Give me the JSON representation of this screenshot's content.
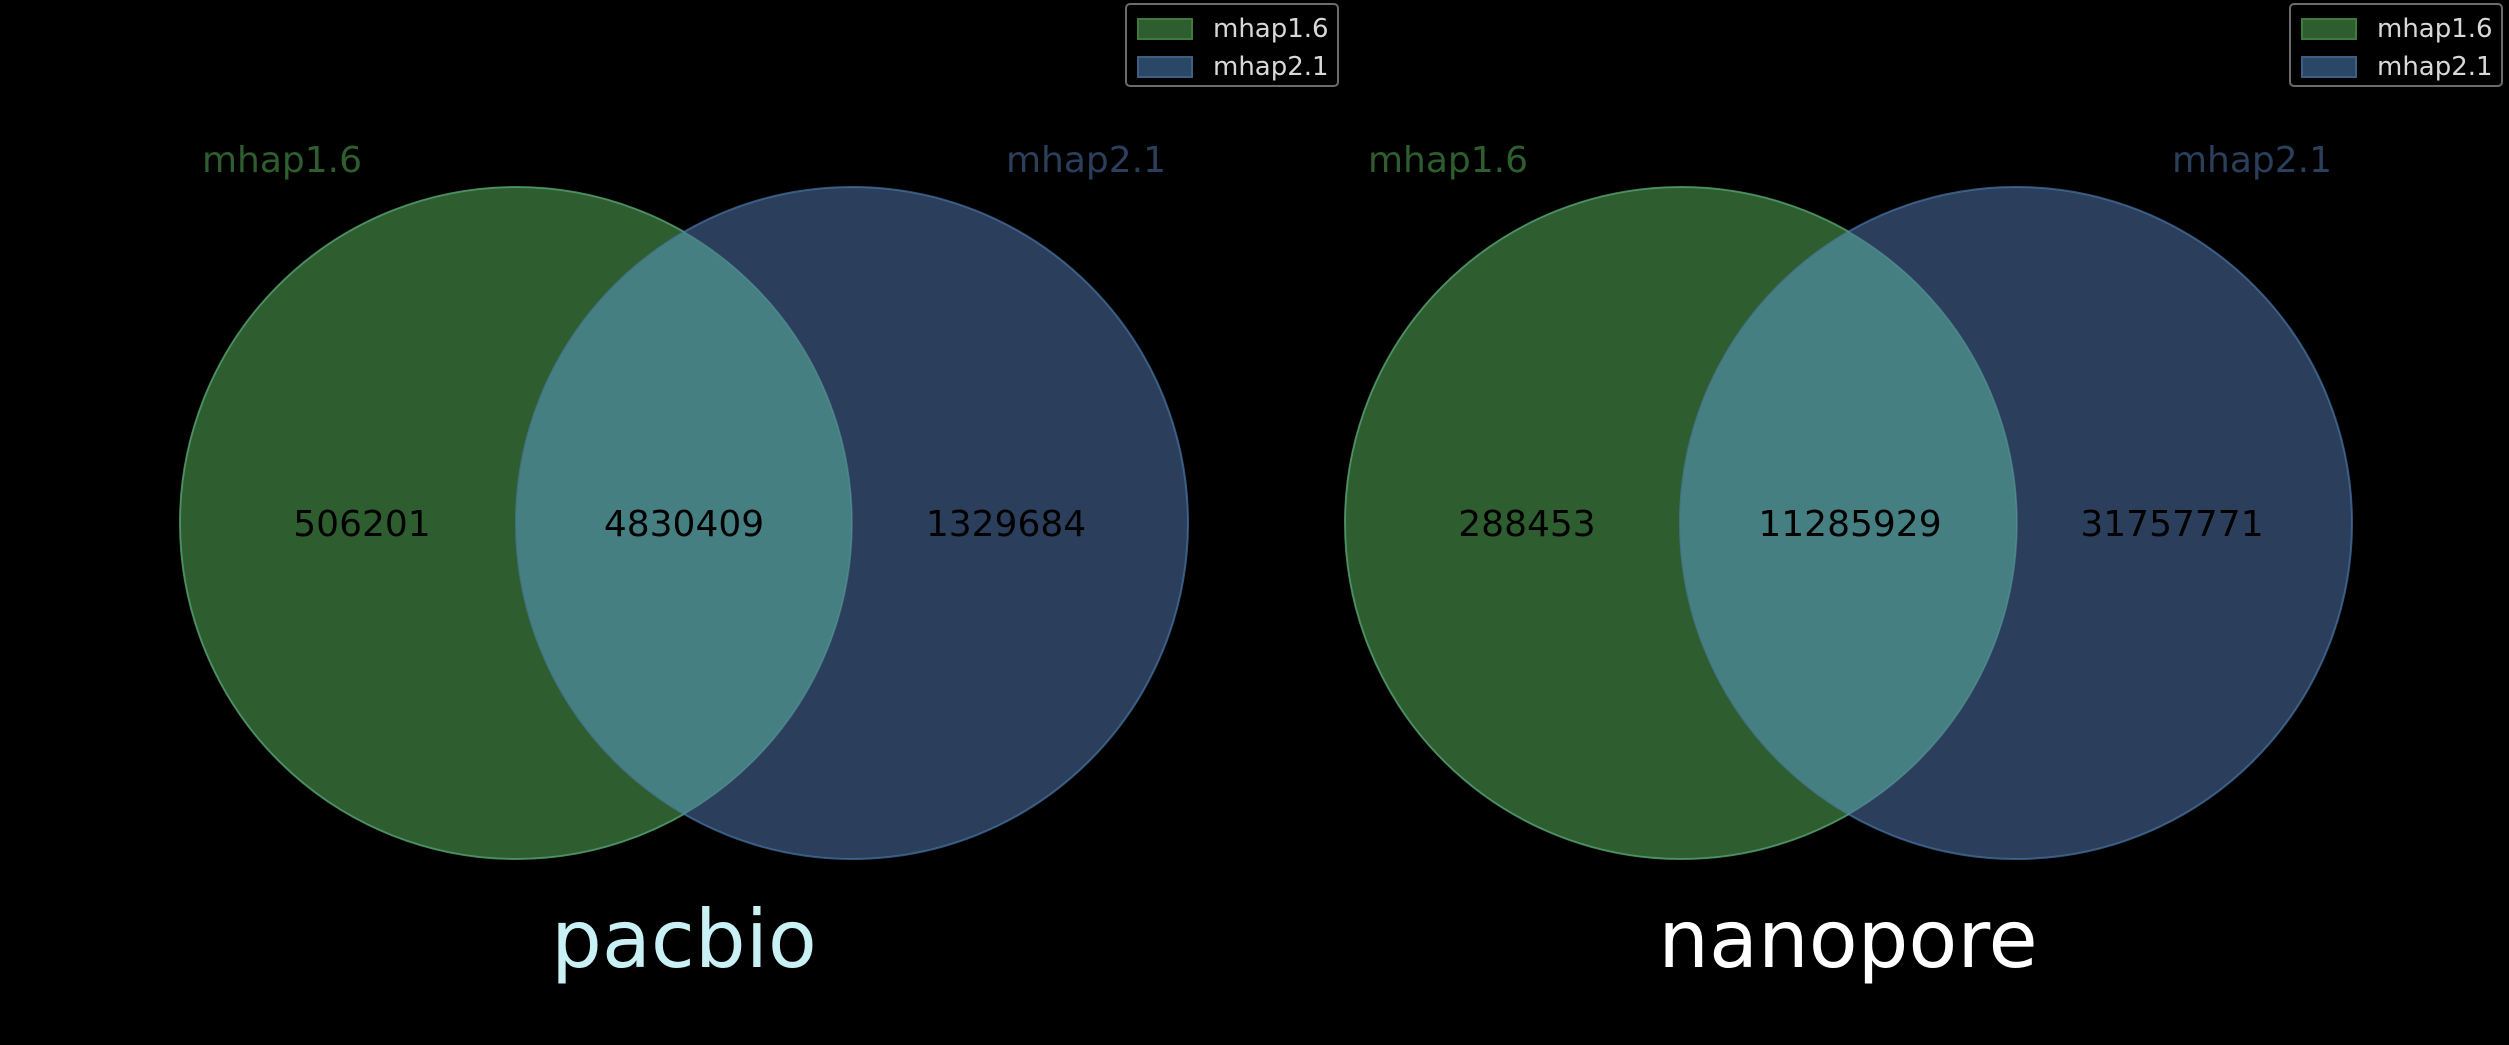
{
  "chart_data": [
    {
      "type": "venn",
      "title": "pacbio",
      "sets": [
        {
          "name": "mhap1.6",
          "color": "#2e5e2f",
          "fill": "#3e8a3c",
          "edge": "#4a9a44"
        },
        {
          "name": "mhap2.1",
          "color": "#2b3f5c",
          "fill": "#3a6a99",
          "edge": "#4a78a8"
        }
      ],
      "regions": {
        "only_a": "506201",
        "both": "4830409",
        "only_b": "1329684"
      },
      "overlap_color": "#457f82",
      "title_color": "#c9f1f5",
      "legend": [
        "mhap1.6",
        "mhap2.1"
      ],
      "legend_position": "top-right"
    },
    {
      "type": "venn",
      "title": "nanopore",
      "sets": [
        {
          "name": "mhap1.6",
          "color": "#2e5e2f",
          "fill": "#3e8a3c",
          "edge": "#4a9a44"
        },
        {
          "name": "mhap2.1",
          "color": "#2b3f5c",
          "fill": "#3a6a99",
          "edge": "#4a78a8"
        }
      ],
      "regions": {
        "only_a": "288453",
        "both": "11285929",
        "only_b": "31757771"
      },
      "overlap_color": "#457f82",
      "title_color": "#ffffff",
      "legend": [
        "mhap1.6",
        "mhap2.1"
      ],
      "legend_position": "top-right"
    }
  ]
}
